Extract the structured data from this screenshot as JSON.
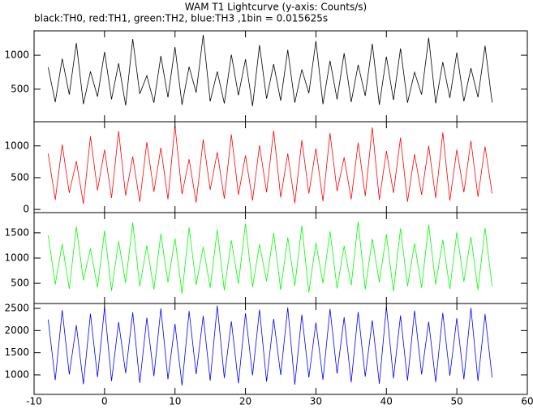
{
  "chart_data": [
    {
      "type": "line",
      "title": "WAM T1 Lightcurve (y-axis: Counts/s)",
      "subtitle": "black:TH0, red:TH1, green:TH2, blue:TH3 ,1bin = 0.015625s",
      "x": [
        -8,
        -7,
        -6,
        -5,
        -4,
        -3,
        -2,
        -1,
        0,
        1,
        2,
        3,
        4,
        5,
        6,
        7,
        8,
        9,
        10,
        11,
        12,
        13,
        14,
        15,
        16,
        17,
        18,
        19,
        20,
        21,
        22,
        23,
        24,
        25,
        26,
        27,
        28,
        29,
        30,
        31,
        32,
        33,
        34,
        35,
        36,
        37,
        38,
        39,
        40,
        41,
        42,
        43,
        44,
        45,
        46,
        47,
        48,
        49,
        50,
        51,
        52,
        53,
        54,
        55
      ],
      "series": [
        {
          "color": "#000000",
          "values": [
            820,
            310,
            950,
            420,
            1180,
            280,
            760,
            390,
            1050,
            350,
            880,
            260,
            1240,
            430,
            700,
            300,
            990,
            380,
            1120,
            270,
            830,
            450,
            1300,
            320,
            760,
            290,
            1010,
            410,
            940,
            250,
            1150,
            360,
            870,
            330,
            1080,
            300,
            790,
            440,
            1210,
            280,
            920,
            350,
            1030,
            310,
            860,
            400,
            1170,
            270,
            980,
            340,
            1100,
            300,
            750,
            420,
            1260,
            290,
            900,
            370,
            1040,
            320,
            810,
            380,
            1140,
            300
          ]
        }
      ],
      "xlim": [
        -10,
        60
      ],
      "ylim": [
        20,
        1360
      ],
      "yticks": [
        500,
        1000
      ]
    },
    {
      "type": "line",
      "x": [
        -8,
        -7,
        -6,
        -5,
        -4,
        -3,
        -2,
        -1,
        0,
        1,
        2,
        3,
        4,
        5,
        6,
        7,
        8,
        9,
        10,
        11,
        12,
        13,
        14,
        15,
        16,
        17,
        18,
        19,
        20,
        21,
        22,
        23,
        24,
        25,
        26,
        27,
        28,
        29,
        30,
        31,
        32,
        33,
        34,
        35,
        36,
        37,
        38,
        39,
        40,
        41,
        42,
        43,
        44,
        45,
        46,
        47,
        48,
        49,
        50,
        51,
        52,
        53,
        54,
        55
      ],
      "series": [
        {
          "color": "#ff0000",
          "values": [
            880,
            150,
            1020,
            260,
            760,
            90,
            1150,
            300,
            940,
            180,
            1230,
            220,
            830,
            120,
            1060,
            280,
            970,
            160,
            1320,
            240,
            790,
            110,
            1100,
            310,
            900,
            170,
            1180,
            230,
            850,
            140,
            1010,
            270,
            1240,
            190,
            880,
            100,
            1090,
            250,
            960,
            130,
            1200,
            290,
            820,
            160,
            1050,
            210,
            1290,
            150,
            920,
            260,
            1130,
            120,
            870,
            230,
            1000,
            180,
            1210,
            140,
            940,
            270,
            1080,
            200,
            990,
            250
          ]
        }
      ],
      "xlim": [
        -10,
        60
      ],
      "ylim": [
        -50,
        1380
      ],
      "yticks": [
        0,
        500,
        1000
      ]
    },
    {
      "type": "line",
      "x": [
        -8,
        -7,
        -6,
        -5,
        -4,
        -3,
        -2,
        -1,
        0,
        1,
        2,
        3,
        4,
        5,
        6,
        7,
        8,
        9,
        10,
        11,
        12,
        13,
        14,
        15,
        16,
        17,
        18,
        19,
        20,
        21,
        22,
        23,
        24,
        25,
        26,
        27,
        28,
        29,
        30,
        31,
        32,
        33,
        34,
        35,
        36,
        37,
        38,
        39,
        40,
        41,
        42,
        43,
        44,
        45,
        46,
        47,
        48,
        49,
        50,
        51,
        52,
        53,
        54,
        55
      ],
      "series": [
        {
          "color": "#00ff00",
          "values": [
            1450,
            480,
            1280,
            390,
            1620,
            560,
            1190,
            420,
            1540,
            350,
            1330,
            510,
            1700,
            440,
            1250,
            380,
            1480,
            520,
            1390,
            300,
            1610,
            470,
            1220,
            410,
            1560,
            360,
            1350,
            490,
            1680,
            430,
            1270,
            540,
            1500,
            370,
            1410,
            450,
            1640,
            320,
            1300,
            500,
            1530,
            400,
            1240,
            460,
            1720,
            380,
            1380,
            520,
            1470,
            340,
            1590,
            440,
            1290,
            410,
            1660,
            480,
            1360,
            390,
            1510,
            530,
            1420,
            370,
            1600,
            450
          ]
        }
      ],
      "xlim": [
        -10,
        60
      ],
      "ylim": [
        100,
        1900
      ],
      "yticks": [
        500,
        1000,
        1500
      ]
    },
    {
      "type": "line",
      "x": [
        -8,
        -7,
        -6,
        -5,
        -4,
        -3,
        -2,
        -1,
        0,
        1,
        2,
        3,
        4,
        5,
        6,
        7,
        8,
        9,
        10,
        11,
        12,
        13,
        14,
        15,
        16,
        17,
        18,
        19,
        20,
        21,
        22,
        23,
        24,
        25,
        26,
        27,
        28,
        29,
        30,
        31,
        32,
        33,
        34,
        35,
        36,
        37,
        38,
        39,
        40,
        41,
        42,
        43,
        44,
        45,
        46,
        47,
        48,
        49,
        50,
        51,
        52,
        53,
        54,
        55
      ],
      "series": [
        {
          "color": "#0000ff",
          "values": [
            2250,
            880,
            2460,
            1010,
            2120,
            790,
            2380,
            950,
            2530,
            860,
            2190,
            1040,
            2410,
            820,
            2290,
            970,
            2500,
            900,
            2150,
            760,
            2440,
            1020,
            2330,
            870,
            2560,
            930,
            2210,
            810,
            2390,
            990,
            2470,
            850,
            2260,
            1000,
            2520,
            780,
            2360,
            940,
            2180,
            890,
            2490,
            1030,
            2300,
            830,
            2420,
            960,
            2230,
            800,
            2540,
            920,
            2340,
            870,
            2450,
            1010,
            2200,
            840,
            2400,
            980,
            2280,
            900,
            2510,
            860,
            2370,
            940
          ]
        }
      ],
      "xlim": [
        -10,
        60
      ],
      "ylim": [
        560,
        2610
      ],
      "yticks": [
        1000,
        1500,
        2000,
        2500
      ],
      "xticks": [
        -10,
        0,
        10,
        20,
        30,
        40,
        50,
        60
      ]
    }
  ]
}
